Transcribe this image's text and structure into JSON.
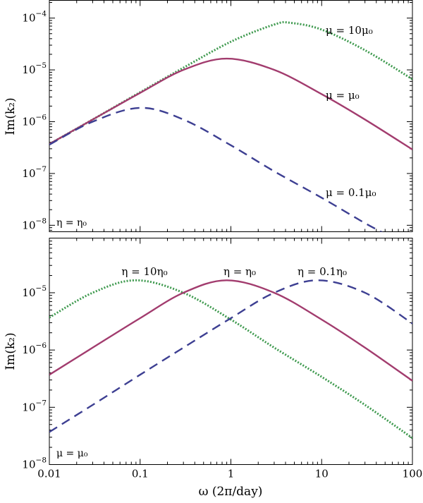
{
  "colors": {
    "green": "#3f9a4f",
    "purple": "#a23c6e",
    "blue": "#3d3f92"
  },
  "shared": {
    "xlabel": "ω (2π/day)",
    "xticks": [
      {
        "value": 0.01,
        "label": "0.01"
      },
      {
        "value": 0.1,
        "label": "0.1"
      },
      {
        "value": 1,
        "label": "1"
      },
      {
        "value": 10,
        "label": "10"
      },
      {
        "value": 100,
        "label": "100"
      }
    ]
  },
  "chart_data": [
    {
      "type": "line",
      "xscale": "log",
      "yscale": "log",
      "xlim": [
        0.01,
        100
      ],
      "ylim": [
        7.5e-09,
        0.00022
      ],
      "ylabel": "Im(k₂)",
      "yticks": [
        {
          "value": 1e-08,
          "base": "10",
          "exp": "−8"
        },
        {
          "value": 1e-07,
          "base": "10",
          "exp": "−7"
        },
        {
          "value": 1e-06,
          "base": "10",
          "exp": "−6"
        },
        {
          "value": 1e-05,
          "base": "10",
          "exp": "−5"
        },
        {
          "value": 0.0001,
          "base": "10",
          "exp": "−4"
        }
      ],
      "note": "η = η₀",
      "series": [
        {
          "name": "μ = 10μ₀",
          "color_key": "green",
          "style": "dotted",
          "x": [
            0.01,
            0.03,
            0.1,
            0.3,
            1,
            3,
            4.5,
            10,
            30,
            100
          ],
          "y": [
            3.7e-07,
            1.1e-06,
            3.7e-06,
            1.1e-05,
            3.5e-05,
            7.5e-05,
            8.1e-05,
            6e-05,
            2.4e-05,
            6.6e-06
          ]
        },
        {
          "name": "μ = μ₀",
          "color_key": "purple",
          "style": "solid",
          "x": [
            0.01,
            0.03,
            0.1,
            0.3,
            0.9,
            3,
            10,
            30,
            100
          ],
          "y": [
            3.7e-07,
            1.1e-06,
            3.6e-06,
            1e-05,
            1.65e-05,
            1e-05,
            3.4e-06,
            1.1e-06,
            2.9e-07
          ]
        },
        {
          "name": "μ = 0.1μ₀",
          "color_key": "blue",
          "style": "dashed",
          "x": [
            0.01,
            0.03,
            0.1,
            0.3,
            1,
            3,
            10,
            30,
            60
          ],
          "y": [
            3.6e-07,
            1e-06,
            1.85e-06,
            1.1e-06,
            3.5e-07,
            1.1e-07,
            3.4e-08,
            1.1e-08,
            5.8e-09
          ]
        }
      ]
    },
    {
      "type": "line",
      "xscale": "log",
      "yscale": "log",
      "xlim": [
        0.01,
        100
      ],
      "ylim": [
        1e-08,
        9e-05
      ],
      "ylabel": "Im(k₂)",
      "xlabel": "ω (2π/day)",
      "yticks": [
        {
          "value": 1e-08,
          "base": "10",
          "exp": "−8"
        },
        {
          "value": 1e-07,
          "base": "10",
          "exp": "−7"
        },
        {
          "value": 1e-06,
          "base": "10",
          "exp": "−6"
        },
        {
          "value": 1e-05,
          "base": "10",
          "exp": "−5"
        }
      ],
      "note": "μ = μ₀",
      "series": [
        {
          "name": "η = 10η₀",
          "color_key": "green",
          "style": "dotted",
          "x": [
            0.01,
            0.03,
            0.09,
            0.3,
            1,
            3,
            10,
            30,
            100
          ],
          "y": [
            3.7e-06,
            1e-05,
            1.65e-05,
            1e-05,
            3.4e-06,
            1.1e-06,
            3.4e-07,
            1.1e-07,
            2.9e-08
          ]
        },
        {
          "name": "η = η₀",
          "color_key": "purple",
          "style": "solid",
          "x": [
            0.01,
            0.03,
            0.1,
            0.3,
            0.9,
            3,
            10,
            30,
            100
          ],
          "y": [
            3.7e-07,
            1.1e-06,
            3.6e-06,
            1e-05,
            1.65e-05,
            1e-05,
            3.4e-06,
            1.1e-06,
            2.9e-07
          ]
        },
        {
          "name": "η = 0.1η₀",
          "color_key": "blue",
          "style": "dashed",
          "x": [
            0.01,
            0.03,
            0.1,
            0.3,
            1,
            3,
            9,
            30,
            100
          ],
          "y": [
            3.7e-08,
            1.1e-07,
            3.7e-07,
            1.1e-06,
            3.6e-06,
            1e-05,
            1.65e-05,
            1e-05,
            2.9e-06
          ]
        }
      ]
    }
  ]
}
